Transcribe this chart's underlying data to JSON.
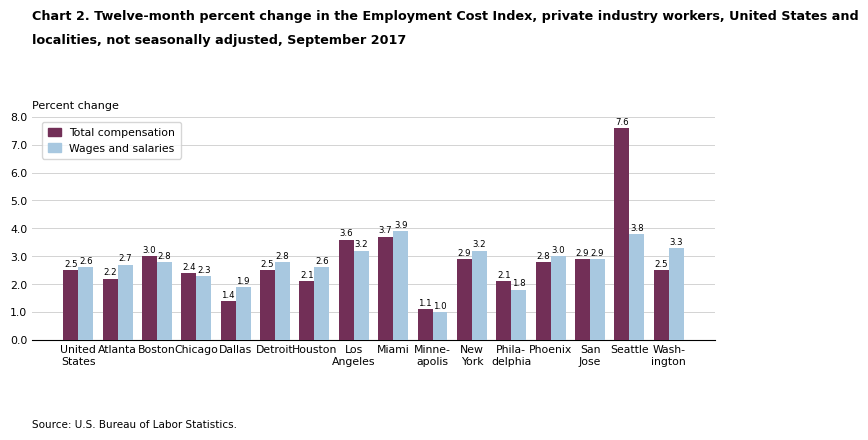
{
  "title_line1": "Chart 2. Twelve-month percent change in the Employment Cost Index, private industry workers, United States and",
  "title_line2": "localities, not seasonally adjusted, September 2017",
  "ylabel": "Percent change",
  "source": "Source: U.S. Bureau of Labor Statistics.",
  "categories": [
    "United\nStates",
    "Atlanta",
    "Boston",
    "Chicago",
    "Dallas",
    "Detroit",
    "Houston",
    "Los\nAngeles",
    "Miami",
    "Minne-\napolis",
    "New\nYork",
    "Phila-\ndelphia",
    "Phoenix",
    "San\nJose",
    "Seattle",
    "Wash-\nington"
  ],
  "total_compensation": [
    2.5,
    2.2,
    3.0,
    2.4,
    1.4,
    2.5,
    2.1,
    3.6,
    3.7,
    1.1,
    2.9,
    2.1,
    2.8,
    2.9,
    7.6,
    2.5
  ],
  "wages_salaries": [
    2.6,
    2.7,
    2.8,
    2.3,
    1.9,
    2.8,
    2.6,
    3.2,
    3.9,
    1.0,
    3.2,
    1.8,
    3.0,
    2.9,
    3.8,
    3.3
  ],
  "color_total": "#722F57",
  "color_wages": "#A8C8E0",
  "ylim": [
    0,
    8.0
  ],
  "yticks": [
    0.0,
    1.0,
    2.0,
    3.0,
    4.0,
    5.0,
    6.0,
    7.0,
    8.0
  ],
  "legend_total": "Total compensation",
  "legend_wages": "Wages and salaries",
  "bar_width": 0.38,
  "value_fontsize": 6.2,
  "tick_fontsize": 7.8,
  "title_fontsize": 9.2,
  "ylabel_fontsize": 8.0,
  "source_fontsize": 7.5
}
